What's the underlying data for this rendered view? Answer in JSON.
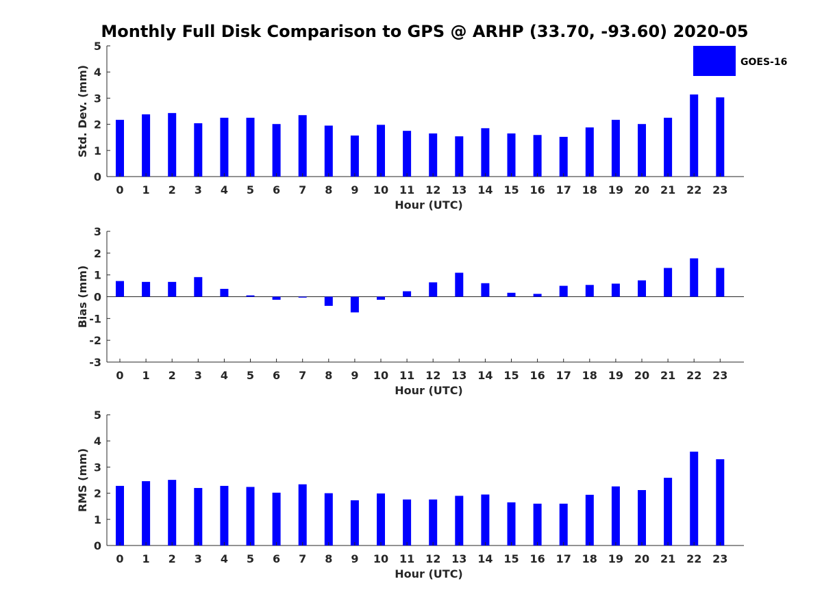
{
  "title": "Monthly Full Disk Comparison to GPS @ ARHP (33.70, -93.60) 2020-05",
  "legend": {
    "label": "GOES-16",
    "placement": "top-right"
  },
  "colors": {
    "bar": "#0000ff",
    "axis": "#262626",
    "text": "#000000"
  },
  "chart_data": [
    {
      "type": "bar",
      "categories": [
        "0",
        "1",
        "2",
        "3",
        "4",
        "5",
        "6",
        "7",
        "8",
        "9",
        "10",
        "11",
        "12",
        "13",
        "14",
        "15",
        "16",
        "17",
        "18",
        "19",
        "20",
        "21",
        "22",
        "23"
      ],
      "series": [
        {
          "name": "GOES-16",
          "values": [
            2.17,
            2.38,
            2.43,
            2.04,
            2.25,
            2.25,
            2.01,
            2.35,
            1.95,
            1.57,
            1.98,
            1.75,
            1.65,
            1.54,
            1.85,
            1.65,
            1.59,
            1.52,
            1.88,
            2.17,
            2.01,
            2.25,
            3.14,
            3.03
          ]
        }
      ],
      "xlabel": "Hour (UTC)",
      "ylabel": "Std. Dev. (mm)",
      "ylim": [
        0,
        5
      ],
      "yticks": [
        "0",
        "1",
        "2",
        "3",
        "4",
        "5"
      ],
      "grid": false
    },
    {
      "type": "bar",
      "categories": [
        "0",
        "1",
        "2",
        "3",
        "4",
        "5",
        "6",
        "7",
        "8",
        "9",
        "10",
        "11",
        "12",
        "13",
        "14",
        "15",
        "16",
        "17",
        "18",
        "19",
        "20",
        "21",
        "22",
        "23"
      ],
      "series": [
        {
          "name": "GOES-16",
          "values": [
            0.72,
            0.68,
            0.68,
            0.9,
            0.36,
            0.06,
            -0.14,
            -0.04,
            -0.42,
            -0.72,
            -0.14,
            0.25,
            0.66,
            1.1,
            0.62,
            0.18,
            0.13,
            0.5,
            0.54,
            0.6,
            0.75,
            1.32,
            1.76,
            1.32
          ]
        }
      ],
      "xlabel": "Hour (UTC)",
      "ylabel": "Bias (mm)",
      "ylim": [
        -3,
        3
      ],
      "yticks": [
        "-3",
        "-2",
        "-1",
        "0",
        "1",
        "2",
        "3"
      ],
      "grid": false
    },
    {
      "type": "bar",
      "categories": [
        "0",
        "1",
        "2",
        "3",
        "4",
        "5",
        "6",
        "7",
        "8",
        "9",
        "10",
        "11",
        "12",
        "13",
        "14",
        "15",
        "16",
        "17",
        "18",
        "19",
        "20",
        "21",
        "22",
        "23"
      ],
      "series": [
        {
          "name": "GOES-16",
          "values": [
            2.28,
            2.46,
            2.51,
            2.2,
            2.28,
            2.24,
            2.02,
            2.34,
            2.0,
            1.73,
            1.99,
            1.76,
            1.76,
            1.9,
            1.95,
            1.65,
            1.6,
            1.6,
            1.94,
            2.26,
            2.12,
            2.59,
            3.59,
            3.3
          ]
        }
      ],
      "xlabel": "Hour (UTC)",
      "ylabel": "RMS (mm)",
      "ylim": [
        0,
        5
      ],
      "yticks": [
        "0",
        "1",
        "2",
        "3",
        "4",
        "5"
      ],
      "grid": false
    }
  ]
}
